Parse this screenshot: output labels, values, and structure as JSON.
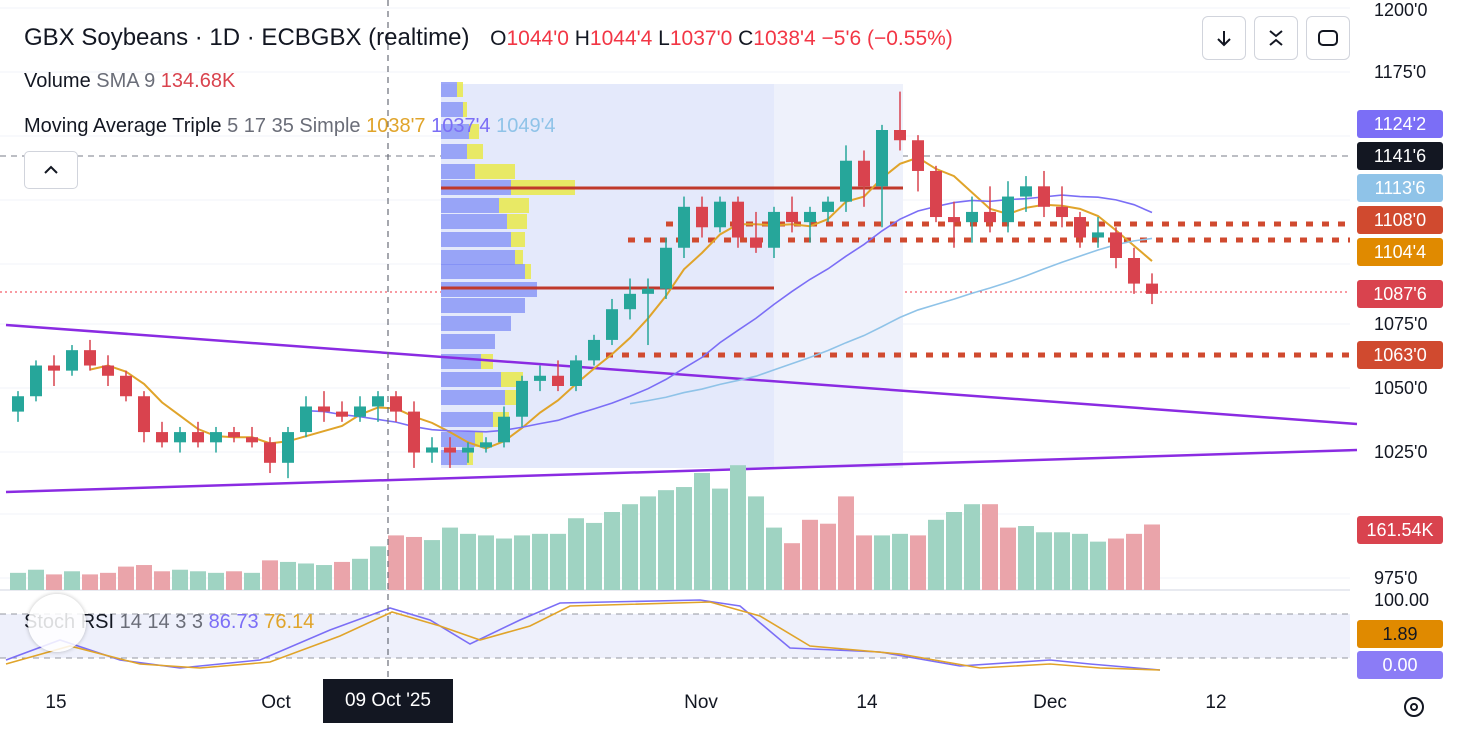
{
  "header": {
    "symbol": "GBX Soybeans · 1D · ECBGBX (realtime)",
    "o_label": "O",
    "o_value": "1044'0",
    "h_label": "H",
    "h_value": "1044'4",
    "l_label": "L",
    "l_value": "1037'0",
    "c_label": "C",
    "c_value": "1038'4",
    "change": "−5'6 (−0.55%)"
  },
  "volume_legend": {
    "name": "Volume",
    "params": "SMA 9",
    "value": "134.68K"
  },
  "ma_legend": {
    "name": "Moving Average Triple",
    "params": "5 17 35 Simple",
    "v1": "1038'7",
    "v2": "1037'4",
    "v3": "1049'4"
  },
  "stoch_legend": {
    "name": "Stoch RSI",
    "params": "14 14 3 3",
    "k": "86.73",
    "d": "76.14"
  },
  "price_badges": [
    {
      "text": "1124'2",
      "color": "#7b6ef6"
    },
    {
      "text": "1141'6",
      "color": "#131722"
    },
    {
      "text": "1113'6",
      "color": "#8fc3e8"
    },
    {
      "text": "1108'0",
      "color": "#d04a2f"
    },
    {
      "text": "1104'4",
      "color": "#e08a00"
    },
    {
      "text": "1087'6",
      "color": "#d9434e"
    },
    {
      "text": "1063'0",
      "color": "#d04a2f"
    }
  ],
  "volume_badge": {
    "text": "161.54K",
    "color": "#d9434e"
  },
  "stoch_badges": [
    {
      "text": "1.89",
      "color": "#e08a00"
    },
    {
      "text": "0.00",
      "color": "#8b7cf6"
    }
  ],
  "x_labels": [
    "15",
    "Oct",
    "Nov",
    "14",
    "Dec",
    "12"
  ],
  "crosshair_date": "09 Oct '25",
  "colors": {
    "up": "#26a69a",
    "down": "#d9434e",
    "ma5": "#e0a42a",
    "ma17": "#7b6ef6",
    "ma35": "#8fc3e8",
    "trend": "#8a2be2",
    "level": "#d04a2f",
    "poc": "#c0392b"
  },
  "icons": [
    "arrow-down-icon",
    "fullscreen-collapse-icon",
    "screenshot-icon",
    "chevron-up-icon",
    "settings-icon"
  ],
  "chart_data": {
    "type": "candlestick",
    "y_axis": {
      "min": 975,
      "max": 1200,
      "ticks": [
        "1200'0",
        "1175'0",
        "1075'0",
        "1050'0",
        "1025'0",
        "975'0"
      ]
    },
    "stoch_axis": {
      "ticks": [
        "100.00"
      ]
    },
    "candles": [
      [
        1040,
        1048,
        1036,
        1046
      ],
      [
        1046,
        1060,
        1044,
        1058
      ],
      [
        1058,
        1062,
        1050,
        1056
      ],
      [
        1056,
        1066,
        1054,
        1064
      ],
      [
        1064,
        1068,
        1056,
        1058
      ],
      [
        1058,
        1062,
        1050,
        1054
      ],
      [
        1054,
        1056,
        1044,
        1046
      ],
      [
        1046,
        1048,
        1028,
        1032
      ],
      [
        1032,
        1036,
        1026,
        1028
      ],
      [
        1028,
        1034,
        1024,
        1032
      ],
      [
        1032,
        1036,
        1026,
        1028
      ],
      [
        1028,
        1034,
        1024,
        1032
      ],
      [
        1032,
        1034,
        1028,
        1030
      ],
      [
        1030,
        1034,
        1026,
        1028
      ],
      [
        1028,
        1030,
        1016,
        1020
      ],
      [
        1020,
        1034,
        1014,
        1032
      ],
      [
        1032,
        1046,
        1030,
        1042
      ],
      [
        1042,
        1048,
        1036,
        1040
      ],
      [
        1040,
        1044,
        1036,
        1038
      ],
      [
        1038,
        1046,
        1036,
        1042
      ],
      [
        1042,
        1048,
        1036,
        1046
      ],
      [
        1046,
        1048,
        1036,
        1040
      ],
      [
        1040,
        1044,
        1018,
        1024
      ],
      [
        1024,
        1030,
        1020,
        1026
      ],
      [
        1026,
        1030,
        1018,
        1024
      ],
      [
        1024,
        1028,
        1020,
        1026
      ],
      [
        1026,
        1030,
        1024,
        1028
      ],
      [
        1028,
        1042,
        1026,
        1038
      ],
      [
        1038,
        1054,
        1034,
        1052
      ],
      [
        1052,
        1058,
        1048,
        1054
      ],
      [
        1054,
        1060,
        1048,
        1050
      ],
      [
        1050,
        1062,
        1048,
        1060
      ],
      [
        1060,
        1070,
        1058,
        1068
      ],
      [
        1068,
        1084,
        1066,
        1080
      ],
      [
        1080,
        1092,
        1076,
        1086
      ],
      [
        1086,
        1092,
        1066,
        1088
      ],
      [
        1088,
        1108,
        1084,
        1104
      ],
      [
        1104,
        1124,
        1100,
        1120
      ],
      [
        1120,
        1124,
        1108,
        1112
      ],
      [
        1112,
        1124,
        1110,
        1122
      ],
      [
        1122,
        1124,
        1104,
        1108
      ],
      [
        1108,
        1118,
        1102,
        1104
      ],
      [
        1104,
        1120,
        1100,
        1118
      ],
      [
        1118,
        1124,
        1110,
        1114
      ],
      [
        1114,
        1120,
        1106,
        1118
      ],
      [
        1118,
        1124,
        1114,
        1122
      ],
      [
        1122,
        1144,
        1118,
        1138
      ],
      [
        1138,
        1142,
        1120,
        1128
      ],
      [
        1128,
        1152,
        1112,
        1150
      ],
      [
        1150,
        1165,
        1142,
        1146
      ],
      [
        1146,
        1148,
        1126,
        1134
      ],
      [
        1134,
        1136,
        1114,
        1116
      ],
      [
        1116,
        1122,
        1104,
        1114
      ],
      [
        1114,
        1124,
        1106,
        1118
      ],
      [
        1118,
        1128,
        1110,
        1114
      ],
      [
        1114,
        1130,
        1110,
        1124
      ],
      [
        1124,
        1132,
        1118,
        1128
      ],
      [
        1128,
        1134,
        1116,
        1120
      ],
      [
        1120,
        1128,
        1112,
        1116
      ],
      [
        1116,
        1118,
        1104,
        1108
      ],
      [
        1108,
        1116,
        1104,
        1110
      ],
      [
        1110,
        1112,
        1096,
        1100
      ],
      [
        1100,
        1104,
        1086,
        1090
      ],
      [
        1090,
        1094,
        1082,
        1086
      ]
    ],
    "volume": [
      [
        22,
        1
      ],
      [
        26,
        1
      ],
      [
        20,
        0
      ],
      [
        24,
        1
      ],
      [
        20,
        0
      ],
      [
        22,
        0
      ],
      [
        30,
        0
      ],
      [
        32,
        0
      ],
      [
        24,
        0
      ],
      [
        26,
        1
      ],
      [
        24,
        1
      ],
      [
        22,
        1
      ],
      [
        24,
        0
      ],
      [
        22,
        1
      ],
      [
        38,
        0
      ],
      [
        36,
        1
      ],
      [
        34,
        1
      ],
      [
        32,
        1
      ],
      [
        36,
        0
      ],
      [
        40,
        1
      ],
      [
        56,
        1
      ],
      [
        70,
        0
      ],
      [
        68,
        0
      ],
      [
        64,
        1
      ],
      [
        80,
        1
      ],
      [
        72,
        1
      ],
      [
        70,
        1
      ],
      [
        66,
        1
      ],
      [
        70,
        1
      ],
      [
        72,
        1
      ],
      [
        72,
        1
      ],
      [
        92,
        1
      ],
      [
        86,
        1
      ],
      [
        100,
        1
      ],
      [
        110,
        1
      ],
      [
        120,
        1
      ],
      [
        128,
        1
      ],
      [
        132,
        1
      ],
      [
        150,
        1
      ],
      [
        130,
        1
      ],
      [
        160,
        1
      ],
      [
        120,
        1
      ],
      [
        80,
        1
      ],
      [
        60,
        0
      ],
      [
        90,
        0
      ],
      [
        85,
        0
      ],
      [
        120,
        0
      ],
      [
        70,
        0
      ],
      [
        70,
        1
      ],
      [
        72,
        1
      ],
      [
        70,
        0
      ],
      [
        90,
        1
      ],
      [
        100,
        1
      ],
      [
        110,
        1
      ],
      [
        110,
        0
      ],
      [
        80,
        0
      ],
      [
        82,
        1
      ],
      [
        74,
        1
      ],
      [
        74,
        1
      ],
      [
        72,
        1
      ],
      [
        62,
        1
      ],
      [
        66,
        0
      ],
      [
        72,
        0
      ],
      [
        84,
        0
      ]
    ]
  }
}
